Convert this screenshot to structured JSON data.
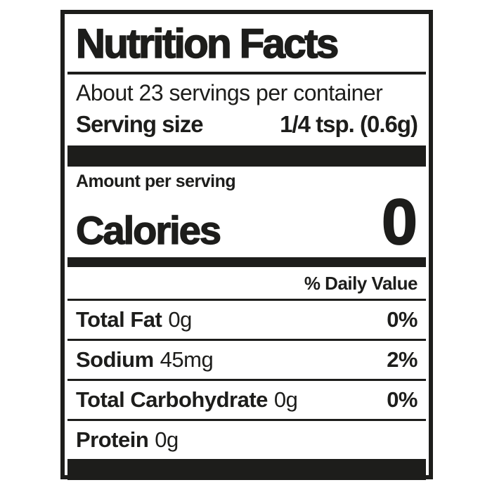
{
  "label": {
    "title": "Nutrition Facts",
    "servings_per_container": "About 23 servings per container",
    "serving_size_label": "Serving size",
    "serving_size_value": "1/4 tsp. (0.6g)",
    "amount_per_serving": "Amount per serving",
    "calories_label": "Calories",
    "calories_value": "0",
    "daily_value_header": "% Daily Value",
    "nutrients": [
      {
        "name": "Total Fat",
        "amount": "0g",
        "dv": "0%"
      },
      {
        "name": "Sodium",
        "amount": "45mg",
        "dv": "2%"
      },
      {
        "name": "Total Carbohydrate",
        "amount": "0g",
        "dv": "0%"
      },
      {
        "name": "Protein",
        "amount": "0g",
        "dv": ""
      }
    ],
    "colors": {
      "ink": "#1d1d1b",
      "background": "#ffffff"
    }
  }
}
